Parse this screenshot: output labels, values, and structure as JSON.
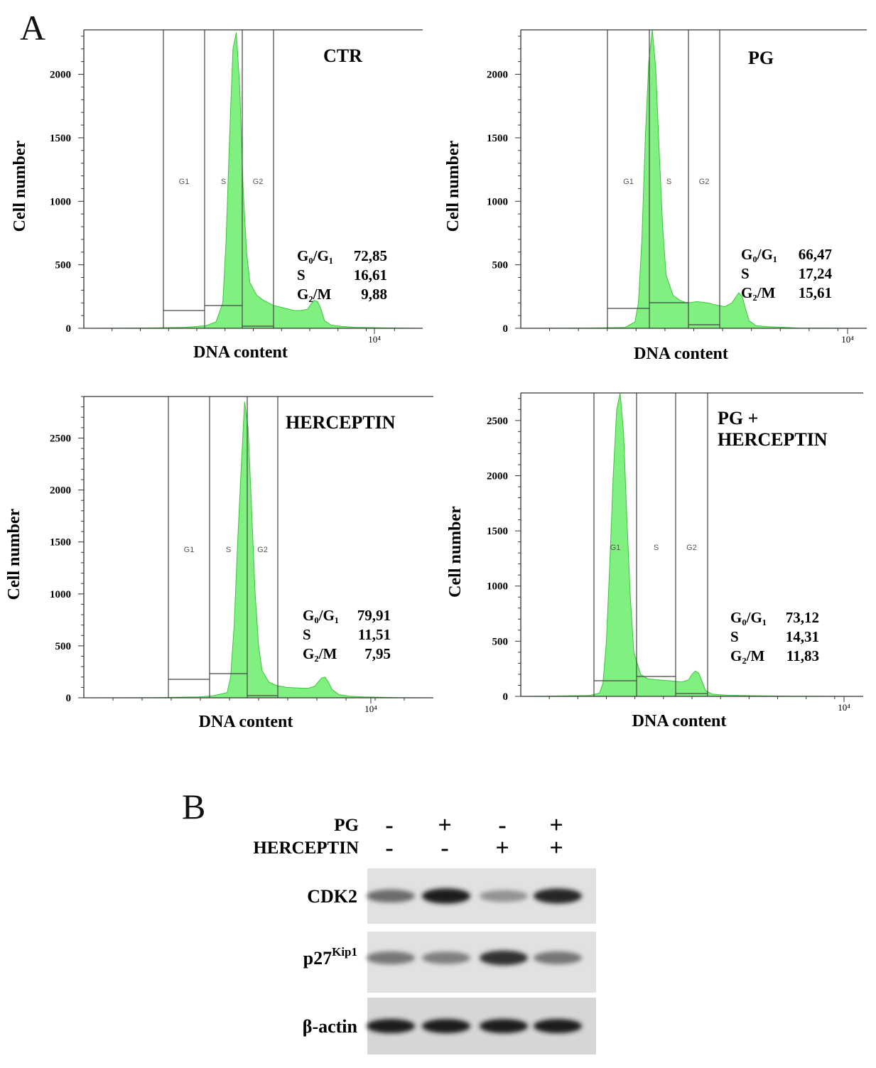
{
  "panel_a": {
    "label": "A"
  },
  "panel_b": {
    "label": "B"
  },
  "colors": {
    "histogram_fill": "#80f080",
    "histogram_stroke": "#3cc43c",
    "axis": "#333333"
  },
  "chart_data": [
    {
      "type": "area",
      "title": "CTR",
      "xlabel": "DNA content",
      "ylabel": "Cell number",
      "x_tick_label": "10⁴",
      "yticks": [
        0,
        500,
        1000,
        1500,
        2000
      ],
      "ylim": [
        0,
        2350
      ],
      "gates": [
        "G1",
        "S",
        "G2"
      ],
      "stats": [
        {
          "phase": "G₀/G₁",
          "value": "72,85"
        },
        {
          "phase": "S",
          "value": "16,61"
        },
        {
          "phase": "G₂/M",
          "value": "9,88"
        }
      ],
      "histogram": [
        [
          0,
          0
        ],
        [
          18,
          2
        ],
        [
          30,
          8
        ],
        [
          36,
          20
        ],
        [
          39,
          50
        ],
        [
          41,
          200
        ],
        [
          42,
          700
        ],
        [
          43,
          1500
        ],
        [
          44,
          2200
        ],
        [
          45,
          2330
        ],
        [
          46,
          1900
        ],
        [
          47,
          1100
        ],
        [
          48,
          600
        ],
        [
          49,
          360
        ],
        [
          51,
          260
        ],
        [
          53,
          220
        ],
        [
          56,
          180
        ],
        [
          59,
          160
        ],
        [
          62,
          140
        ],
        [
          64,
          140
        ],
        [
          66,
          150
        ],
        [
          67,
          190
        ],
        [
          68,
          220
        ],
        [
          69,
          210
        ],
        [
          70,
          150
        ],
        [
          71,
          60
        ],
        [
          73,
          25
        ],
        [
          76,
          15
        ],
        [
          80,
          8
        ],
        [
          90,
          3
        ],
        [
          100,
          0
        ]
      ]
    },
    {
      "type": "area",
      "title": "PG",
      "xlabel": "DNA content",
      "ylabel": "Cell number",
      "x_tick_label": "10⁴",
      "yticks": [
        0,
        500,
        1000,
        1500,
        2000
      ],
      "ylim": [
        0,
        2350
      ],
      "gates": [
        "G1",
        "S",
        "G2"
      ],
      "stats": [
        {
          "phase": "G₀/G₁",
          "value": "66,47"
        },
        {
          "phase": "S",
          "value": "17,24"
        },
        {
          "phase": "G₂/M",
          "value": "15,61"
        }
      ],
      "histogram": [
        [
          0,
          0
        ],
        [
          20,
          2
        ],
        [
          30,
          6
        ],
        [
          31,
          20
        ],
        [
          33,
          50
        ],
        [
          34,
          200
        ],
        [
          35,
          700
        ],
        [
          36,
          1500
        ],
        [
          37,
          2100
        ],
        [
          38,
          2350
        ],
        [
          39,
          2050
        ],
        [
          40,
          1400
        ],
        [
          41,
          800
        ],
        [
          42,
          420
        ],
        [
          44,
          260
        ],
        [
          46,
          220
        ],
        [
          48,
          200
        ],
        [
          51,
          210
        ],
        [
          54,
          200
        ],
        [
          57,
          180
        ],
        [
          59,
          170
        ],
        [
          61,
          200
        ],
        [
          62,
          240
        ],
        [
          63,
          280
        ],
        [
          64,
          250
        ],
        [
          65,
          150
        ],
        [
          66,
          60
        ],
        [
          68,
          20
        ],
        [
          72,
          12
        ],
        [
          76,
          8
        ],
        [
          80,
          2
        ],
        [
          100,
          0
        ]
      ]
    },
    {
      "type": "area",
      "title": "HERCEPTIN",
      "xlabel": "DNA content",
      "ylabel": "Cell number",
      "x_tick_label": "10⁴",
      "yticks": [
        0,
        500,
        1000,
        1500,
        2000,
        2500
      ],
      "ylim": [
        0,
        2900
      ],
      "gates": [
        "G1",
        "S",
        "G2"
      ],
      "stats": [
        {
          "phase": "G₀/G₁",
          "value": "79,91"
        },
        {
          "phase": "S",
          "value": "11,51"
        },
        {
          "phase": "G₂/M",
          "value": "7,95"
        }
      ],
      "histogram": [
        [
          0,
          0
        ],
        [
          20,
          2
        ],
        [
          33,
          8
        ],
        [
          37,
          20
        ],
        [
          41,
          50
        ],
        [
          42,
          200
        ],
        [
          43,
          700
        ],
        [
          44,
          1500
        ],
        [
          45,
          2200
        ],
        [
          46,
          2850
        ],
        [
          47,
          2600
        ],
        [
          48,
          1800
        ],
        [
          49,
          1000
        ],
        [
          50,
          500
        ],
        [
          51,
          260
        ],
        [
          53,
          150
        ],
        [
          55,
          120
        ],
        [
          58,
          100
        ],
        [
          61,
          95
        ],
        [
          64,
          90
        ],
        [
          66,
          110
        ],
        [
          67,
          150
        ],
        [
          68,
          190
        ],
        [
          69,
          200
        ],
        [
          70,
          150
        ],
        [
          71,
          80
        ],
        [
          73,
          30
        ],
        [
          76,
          15
        ],
        [
          80,
          8
        ],
        [
          90,
          2
        ],
        [
          100,
          0
        ]
      ]
    },
    {
      "type": "area",
      "title": "PG + HERCEPTIN",
      "xlabel": "DNA content",
      "ylabel": "Cell number",
      "x_tick_label": "10⁴",
      "yticks": [
        0,
        500,
        1000,
        1500,
        2000,
        2500
      ],
      "ylim": [
        0,
        2750
      ],
      "gates": [
        "G1",
        "S",
        "G2"
      ],
      "stats": [
        {
          "phase": "G₀/G₁",
          "value": "73,12"
        },
        {
          "phase": "S",
          "value": "14,31"
        },
        {
          "phase": "G₂/M",
          "value": "11,83"
        }
      ],
      "histogram": [
        [
          0,
          0
        ],
        [
          10,
          3
        ],
        [
          20,
          8
        ],
        [
          23,
          30
        ],
        [
          24,
          120
        ],
        [
          25,
          500
        ],
        [
          26,
          1200
        ],
        [
          27,
          2000
        ],
        [
          28,
          2600
        ],
        [
          29,
          2750
        ],
        [
          30,
          2400
        ],
        [
          31,
          1600
        ],
        [
          32,
          900
        ],
        [
          33,
          400
        ],
        [
          35,
          200
        ],
        [
          37,
          160
        ],
        [
          40,
          150
        ],
        [
          44,
          140
        ],
        [
          47,
          130
        ],
        [
          49,
          150
        ],
        [
          50,
          200
        ],
        [
          51,
          230
        ],
        [
          52,
          210
        ],
        [
          53,
          130
        ],
        [
          54,
          50
        ],
        [
          56,
          20
        ],
        [
          60,
          10
        ],
        [
          70,
          5
        ],
        [
          80,
          2
        ],
        [
          100,
          0
        ]
      ]
    }
  ],
  "western_blot": {
    "treatments": [
      {
        "label": "PG",
        "lanes": [
          "-",
          "+",
          "-",
          "+"
        ]
      },
      {
        "label": "HERCEPTIN",
        "lanes": [
          "-",
          "-",
          "+",
          "+"
        ]
      }
    ],
    "rows": [
      {
        "label": "CDK2",
        "label_sup": "",
        "intensities": [
          0.55,
          0.95,
          0.35,
          0.9
        ]
      },
      {
        "label": "p27",
        "label_sup": "Kip1",
        "intensities": [
          0.5,
          0.45,
          0.85,
          0.5
        ]
      },
      {
        "label": "β-actin",
        "label_sup": "",
        "intensities": [
          0.95,
          0.95,
          0.95,
          0.95
        ]
      }
    ]
  }
}
